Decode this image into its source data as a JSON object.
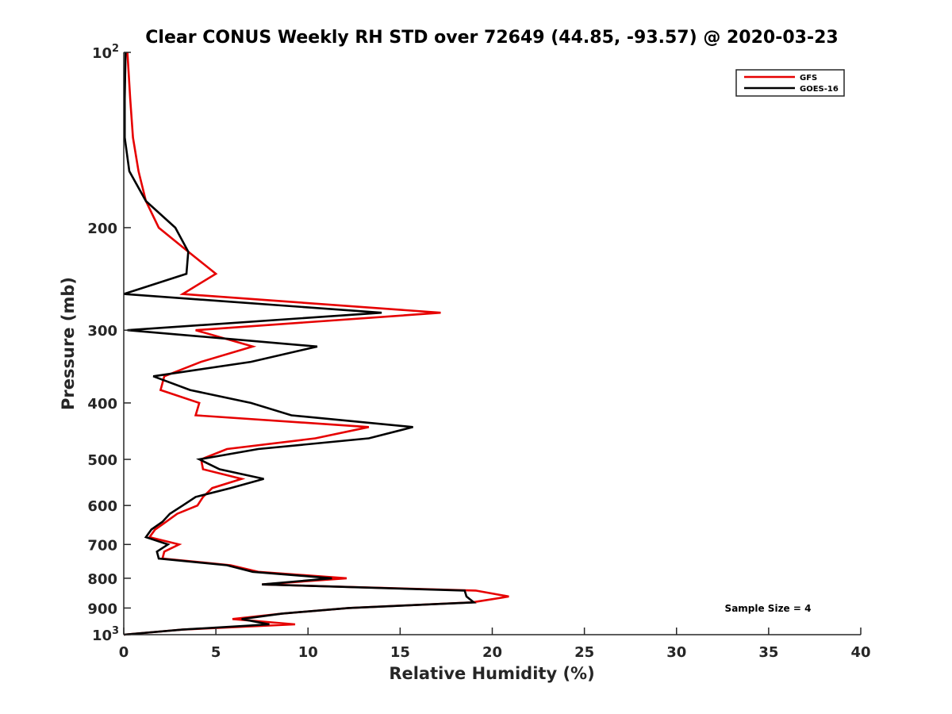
{
  "chart_data": {
    "type": "line",
    "title": "Clear CONUS Weekly RH STD over 72649 (44.85, -93.57) @ 2020-03-23",
    "xlabel": "Relative Humidity (%)",
    "ylabel": "Pressure (mb)",
    "xlim": [
      0,
      40
    ],
    "ylim": [
      100,
      1000
    ],
    "yscale": "log",
    "yreversed": true,
    "grid": false,
    "legend_position": "top-right",
    "xticks": [
      {
        "value": 0,
        "label": "0"
      },
      {
        "value": 5,
        "label": "5"
      },
      {
        "value": 10,
        "label": "10"
      },
      {
        "value": 15,
        "label": "15"
      },
      {
        "value": 20,
        "label": "20"
      },
      {
        "value": 25,
        "label": "25"
      },
      {
        "value": 30,
        "label": "30"
      },
      {
        "value": 35,
        "label": "35"
      },
      {
        "value": 40,
        "label": "40"
      }
    ],
    "yticks": [
      {
        "value": 100,
        "label": "10",
        "sup": "2"
      },
      {
        "value": 200,
        "label": "200",
        "sup": ""
      },
      {
        "value": 300,
        "label": "300",
        "sup": ""
      },
      {
        "value": 400,
        "label": "400",
        "sup": ""
      },
      {
        "value": 500,
        "label": "500",
        "sup": ""
      },
      {
        "value": 600,
        "label": "600",
        "sup": ""
      },
      {
        "value": 700,
        "label": "700",
        "sup": ""
      },
      {
        "value": 800,
        "label": "800",
        "sup": ""
      },
      {
        "value": 900,
        "label": "900",
        "sup": ""
      },
      {
        "value": 1000,
        "label": "10",
        "sup": "3"
      }
    ],
    "pressure": [
      100,
      120,
      140,
      160,
      180,
      200,
      220,
      240,
      260,
      280,
      300,
      320,
      340,
      360,
      380,
      400,
      420,
      440,
      460,
      480,
      500,
      520,
      540,
      560,
      580,
      600,
      620,
      640,
      660,
      680,
      700,
      720,
      740,
      760,
      780,
      800,
      820,
      840,
      860,
      880,
      900,
      920,
      940,
      960,
      980,
      1000
    ],
    "series": [
      {
        "name": "GFS",
        "color": "#e60000",
        "values": [
          0.2,
          0.35,
          0.5,
          0.8,
          1.2,
          1.9,
          3.5,
          5.0,
          3.2,
          17.2,
          3.9,
          7.0,
          4.2,
          2.2,
          2.0,
          4.1,
          3.9,
          13.3,
          10.4,
          5.6,
          4.2,
          4.3,
          6.4,
          4.8,
          4.3,
          4.0,
          2.9,
          2.3,
          1.7,
          1.4,
          3.0,
          2.2,
          2.1,
          5.8,
          7.3,
          12.1,
          7.5,
          19.1,
          20.9,
          18.9,
          12.2,
          8.6,
          5.9,
          9.3,
          3.2,
          0.0
        ]
      },
      {
        "name": "GOES-16",
        "color": "#000000",
        "values": [
          0.1,
          0.05,
          0.05,
          0.3,
          1.2,
          2.8,
          3.5,
          3.4,
          0.0,
          14.0,
          0.2,
          10.5,
          6.9,
          1.6,
          3.6,
          6.9,
          9.1,
          15.7,
          13.3,
          7.3,
          4.1,
          5.2,
          7.6,
          5.8,
          3.9,
          3.2,
          2.5,
          2.1,
          1.5,
          1.2,
          2.4,
          1.8,
          1.9,
          5.6,
          7.0,
          11.3,
          7.5,
          18.5,
          18.6,
          19.0,
          12.2,
          8.6,
          6.4,
          7.9,
          3.2,
          0.0
        ]
      }
    ],
    "annotations": [
      {
        "text": "Sample Size = 4",
        "position": "bottom-right"
      }
    ]
  }
}
